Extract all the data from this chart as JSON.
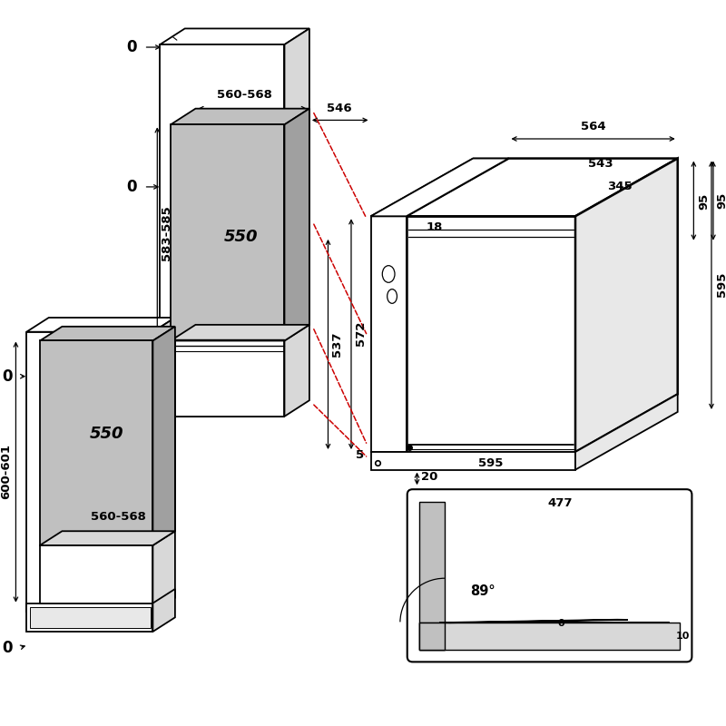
{
  "bg_color": "#ffffff",
  "line_color": "#000000",
  "gray_fill": "#c0c0c0",
  "gray_dark": "#a0a0a0",
  "gray_light": "#d8d8d8",
  "red_dashed": "#cc0000",
  "annotations": {
    "dim_0_top": "0",
    "dim_0_mid": "0",
    "dim_0_bot_l": "0",
    "dim_0_bot": "0",
    "dim_560_568_top": "560-568",
    "dim_583_585": "583-585",
    "dim_550_top": "550",
    "dim_546": "546",
    "dim_564": "564",
    "dim_543": "543",
    "dim_345": "345",
    "dim_18": "18",
    "dim_95": "95",
    "dim_537": "537",
    "dim_572": "572",
    "dim_595_right": "595",
    "dim_5": "5",
    "dim_595_bot": "595",
    "dim_20": "20",
    "dim_550_bot": "550",
    "dim_560_568_bot": "560-568",
    "dim_600_601": "600-601",
    "dim_477": "477",
    "dim_89": "89°",
    "dim_0_inset": "0",
    "dim_10": "10"
  },
  "figsize": [
    8.0,
    8.0
  ],
  "dpi": 100
}
